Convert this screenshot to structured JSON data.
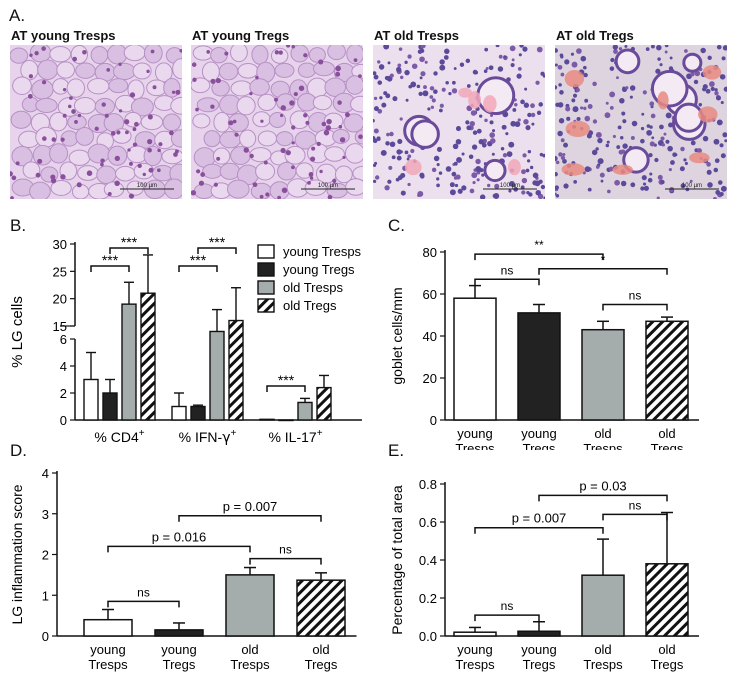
{
  "figure": {
    "panel_letters": [
      "A.",
      "B.",
      "C.",
      "D.",
      "E."
    ],
    "micrographs": [
      {
        "title": "AT young Tresps",
        "scale_label": "100 µm",
        "tone": "young"
      },
      {
        "title": "AT young Tregs",
        "scale_label": "100 µm",
        "tone": "young"
      },
      {
        "title": "AT old Tresps",
        "scale_label": "100 µm",
        "tone": "old"
      },
      {
        "title": "AT old Tregs",
        "scale_label": "100 µm",
        "tone": "old2"
      }
    ]
  },
  "chart_data": [
    {
      "panel": "B.",
      "type": "bar",
      "ylabel": "% LG cells",
      "categories": [
        "% CD4⁺",
        "% IFN-γ⁺",
        "% IL-17⁺"
      ],
      "categories_display": [
        [
          "% CD4",
          "+"
        ],
        [
          "% IFN-",
          "γ",
          "+"
        ],
        [
          "% IL-17",
          "+"
        ]
      ],
      "y_broken_axis": {
        "lower_range": [
          0,
          6
        ],
        "upper_range": [
          15,
          30
        ]
      },
      "yticks": [
        "0",
        "2",
        "4",
        "6",
        "15",
        "20",
        "25",
        "30"
      ],
      "legend_placement": "top-right",
      "series": [
        {
          "name": "young Tresps",
          "style": "open",
          "values": [
            3.0,
            1.0,
            0.05
          ],
          "errors": [
            2.0,
            1.0,
            0.0
          ]
        },
        {
          "name": "young Tregs",
          "style": "black",
          "values": [
            2.0,
            1.0,
            0.0
          ],
          "errors": [
            1.0,
            0.1,
            0.0
          ]
        },
        {
          "name": "old Tresps",
          "style": "gray",
          "values": [
            19,
            14,
            1.3
          ],
          "errors": [
            4,
            4,
            0.3
          ]
        },
        {
          "name": "old Tregs",
          "style": "hatched",
          "values": [
            21,
            16,
            2.4
          ],
          "errors": [
            7,
            6,
            0.9
          ]
        }
      ],
      "significance": [
        {
          "label": "***",
          "group": 0,
          "from": 0,
          "to": 2,
          "tier": "lower"
        },
        {
          "label": "***",
          "group": 0,
          "from": 1,
          "to": 3,
          "tier": "upper"
        },
        {
          "label": "***",
          "group": 1,
          "from": 0,
          "to": 2,
          "tier": "lower"
        },
        {
          "label": "***",
          "group": 1,
          "from": 1,
          "to": 3,
          "tier": "upper"
        },
        {
          "label": "***",
          "group": 2,
          "from": 0,
          "to": 2,
          "tier": "lower"
        }
      ]
    },
    {
      "panel": "C.",
      "type": "bar",
      "ylabel": "goblet cells/mm",
      "ylim": [
        0,
        80
      ],
      "yticks": [
        "0",
        "20",
        "40",
        "60",
        "80"
      ],
      "categories": [
        [
          "young",
          "Tresps"
        ],
        [
          "young",
          "Tregs"
        ],
        [
          "old",
          "Tresps"
        ],
        [
          "old",
          "Tregs"
        ]
      ],
      "styles": [
        "open",
        "black",
        "gray",
        "hatched"
      ],
      "values": [
        58,
        51,
        43,
        47
      ],
      "errors": [
        6,
        4,
        4,
        2
      ],
      "significance": [
        {
          "label": "ns",
          "from": 0,
          "to": 1,
          "y": 67
        },
        {
          "label": "**",
          "from": 0,
          "to": 2,
          "y": 79
        },
        {
          "label": "*",
          "from": 1,
          "to": 3,
          "y": 72
        },
        {
          "label": "ns",
          "from": 2,
          "to": 3,
          "y": 55
        }
      ]
    },
    {
      "panel": "D.",
      "type": "bar",
      "ylabel": "LG inflammation score",
      "ylim": [
        0,
        4
      ],
      "yticks": [
        "0",
        "1",
        "2",
        "3",
        "4"
      ],
      "categories": [
        [
          "young",
          "Tresps"
        ],
        [
          "young",
          "Tregs"
        ],
        [
          "old",
          "Tresps"
        ],
        [
          "old",
          "Tregs"
        ]
      ],
      "styles": [
        "open",
        "black",
        "gray",
        "hatched"
      ],
      "values": [
        0.4,
        0.15,
        1.5,
        1.37
      ],
      "errors": [
        0.25,
        0.17,
        0.18,
        0.18
      ],
      "significance": [
        {
          "label": "ns",
          "from": 0,
          "to": 1,
          "y": 0.85
        },
        {
          "label": "p = 0.016",
          "from": 0,
          "to": 2,
          "y": 2.2
        },
        {
          "label": "p = 0.007",
          "from": 1,
          "to": 3,
          "y": 2.95
        },
        {
          "label": "ns",
          "from": 2,
          "to": 3,
          "y": 1.9
        }
      ]
    },
    {
      "panel": "E.",
      "type": "bar",
      "ylabel": "Percentage of total area",
      "ylim": [
        0,
        0.8
      ],
      "yticks": [
        "0.0",
        "0.2",
        "0.4",
        "0.6",
        "0.8"
      ],
      "categories": [
        [
          "young",
          "Tresps"
        ],
        [
          "young",
          "Tregs"
        ],
        [
          "old",
          "Tresps"
        ],
        [
          "old",
          "Tregs"
        ]
      ],
      "styles": [
        "open",
        "black",
        "gray",
        "hatched"
      ],
      "values": [
        0.02,
        0.025,
        0.32,
        0.38
      ],
      "errors": [
        0.025,
        0.05,
        0.19,
        0.27
      ],
      "significance": [
        {
          "label": "ns",
          "from": 0,
          "to": 1,
          "y": 0.11
        },
        {
          "label": "p = 0.007",
          "from": 0,
          "to": 2,
          "y": 0.57
        },
        {
          "label": "p = 0.03",
          "from": 1,
          "to": 3,
          "y": 0.74
        },
        {
          "label": "ns",
          "from": 2,
          "to": 3,
          "y": 0.64
        }
      ]
    }
  ]
}
